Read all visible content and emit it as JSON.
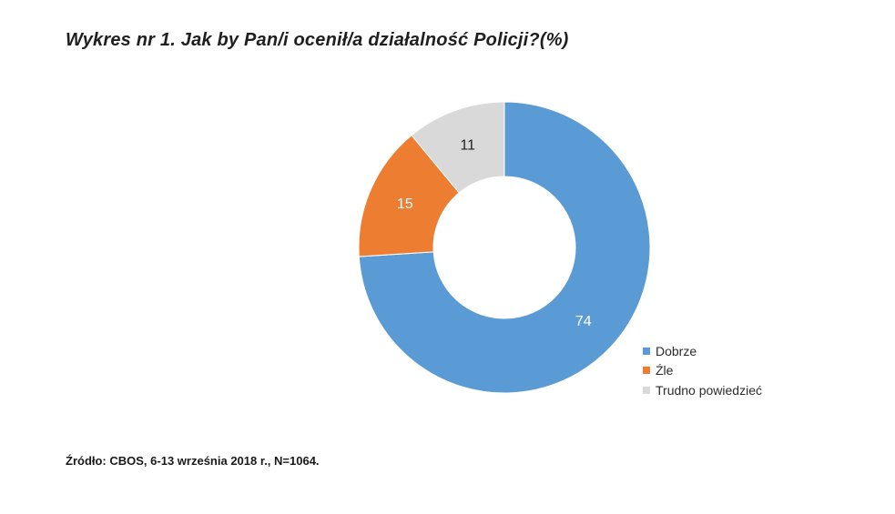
{
  "title": "Wykres nr 1.  Jak by Pan/i ocenił/a działalność Policji?(%)",
  "source": "Źródło: CBOS, 6-13 września 2018 r., N=1064.",
  "chart_data": {
    "type": "pie",
    "variant": "donut",
    "title": "Wykres nr 1.  Jak by Pan/i ocenił/a działalność Policji?(%)",
    "categories": [
      "Dobrze",
      "Źle",
      "Trudno powiedzieć"
    ],
    "values": [
      74,
      15,
      11
    ],
    "labels": [
      "74",
      "15",
      "11"
    ],
    "colors": [
      "#5b9bd5",
      "#ed7d31",
      "#d9d9d9"
    ],
    "label_colors": [
      "#ffffff",
      "#ffffff",
      "#222222"
    ],
    "start": "top, clockwise",
    "legend": "right"
  }
}
